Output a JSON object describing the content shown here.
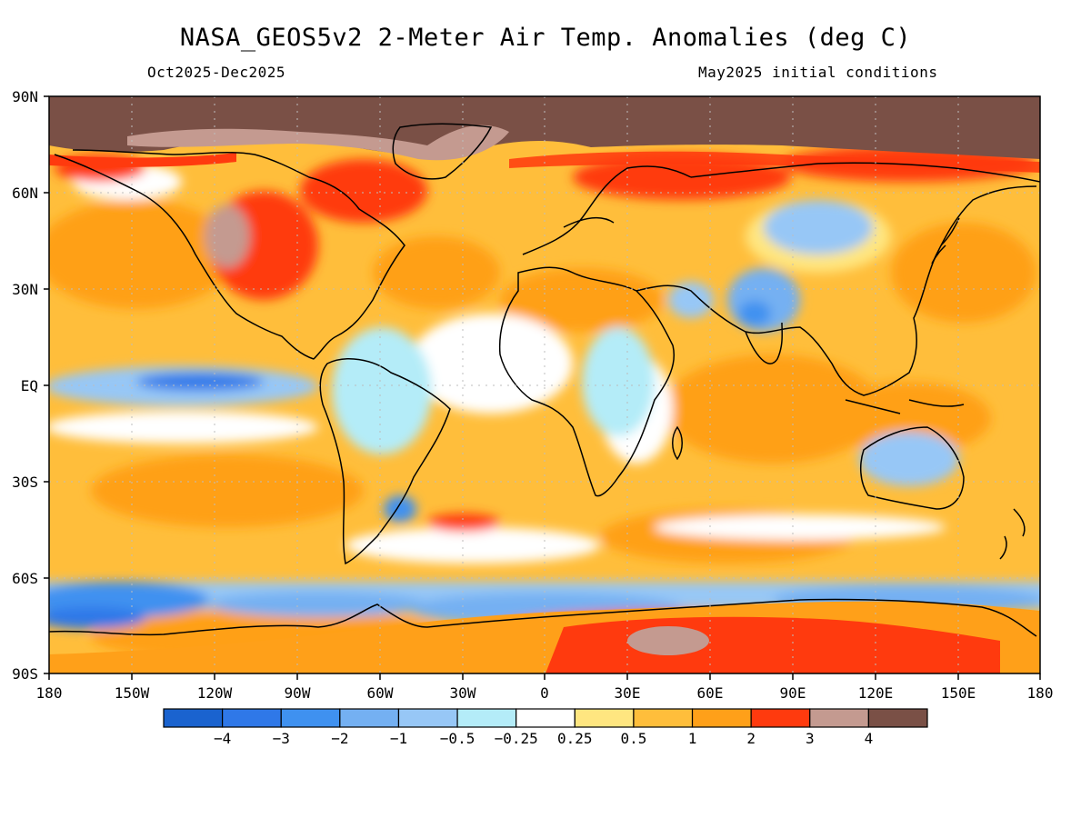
{
  "title": "NASA_GEOS5v2 2-Meter Air Temp. Anomalies (deg C)",
  "period": "Oct2025-Dec2025",
  "initial_conditions": "May2025 initial conditions",
  "lat_labels": [
    "90N",
    "60N",
    "30N",
    "EQ",
    "30S",
    "60S",
    "90S"
  ],
  "lon_labels": [
    "180",
    "150W",
    "120W",
    "90W",
    "60W",
    "30W",
    "0",
    "30E",
    "60E",
    "90E",
    "120E",
    "150E",
    "180"
  ],
  "colorbar": {
    "colors": [
      "#1a63cf",
      "#2f78e8",
      "#3f91f0",
      "#74b0f2",
      "#97c7f6",
      "#b4ecf8",
      "#ffffff",
      "#ffe680",
      "#ffbe3b",
      "#ffa019",
      "#ff3a0e",
      "#c49a90",
      "#7a5046"
    ],
    "labels": [
      "-4",
      "-3",
      "-2",
      "-1",
      "-0.5",
      "-0.25",
      "0.25",
      "0.5",
      "1",
      "2",
      "3",
      "4"
    ]
  }
}
